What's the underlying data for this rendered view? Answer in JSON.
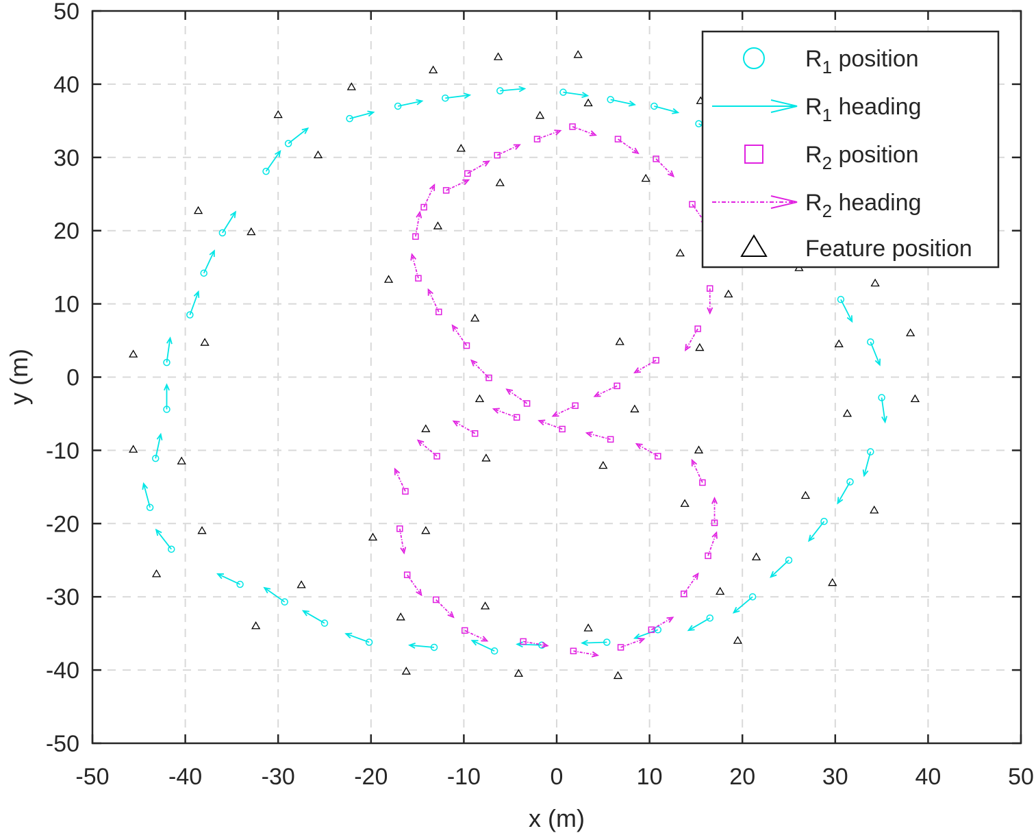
{
  "chart_data": {
    "type": "scatter",
    "xlabel": "x (m)",
    "ylabel": "y (m)",
    "xlim": [
      -50,
      50
    ],
    "ylim": [
      -50,
      50
    ],
    "xticks": [
      "-50",
      "-40",
      "-30",
      "-20",
      "-10",
      "0",
      "10",
      "20",
      "30",
      "40",
      "50"
    ],
    "yticks": [
      "-50",
      "-40",
      "-30",
      "-20",
      "-10",
      "0",
      "10",
      "20",
      "30",
      "40",
      "50"
    ],
    "grid": true,
    "legend_placement": "top-right",
    "legend": [
      {
        "base": "R",
        "sub": "1",
        "text": " position",
        "marker": "circle",
        "color": "#00E5E5"
      },
      {
        "base": "R",
        "sub": "1",
        "text": " heading",
        "marker": "arrow",
        "color": "#00E5E5"
      },
      {
        "base": "R",
        "sub": "2",
        "text": " position",
        "marker": "square",
        "color": "#E020E0"
      },
      {
        "base": "R",
        "sub": "2",
        "text": " heading",
        "marker": "dasharrow",
        "color": "#E020E0"
      },
      {
        "base": "",
        "sub": "",
        "text": "Feature position",
        "marker": "triangle",
        "color": "#000000"
      }
    ],
    "series": [
      {
        "name": "R1",
        "color": "#00E5E5",
        "marker": "circle",
        "points": [
          {
            "x": 0.7,
            "y": 38.9,
            "heading": -8
          },
          {
            "x": 5.8,
            "y": 37.9,
            "heading": -12
          },
          {
            "x": 10.5,
            "y": 37.0,
            "heading": -15
          },
          {
            "x": 15.3,
            "y": 34.6,
            "heading": -28
          },
          {
            "x": 30.6,
            "y": 10.6,
            "heading": -63
          },
          {
            "x": 33.8,
            "y": 4.8,
            "heading": -68
          },
          {
            "x": 35.0,
            "y": -2.8,
            "heading": -82
          },
          {
            "x": 33.8,
            "y": -10.2,
            "heading": -105
          },
          {
            "x": 31.6,
            "y": -14.3,
            "heading": -120
          },
          {
            "x": 28.8,
            "y": -19.7,
            "heading": -128
          },
          {
            "x": 25.0,
            "y": -25.0,
            "heading": -137
          },
          {
            "x": 21.1,
            "y": -30.0,
            "heading": -140
          },
          {
            "x": 16.5,
            "y": -32.9,
            "heading": -150
          },
          {
            "x": 10.9,
            "y": -34.5,
            "heading": -160
          },
          {
            "x": 5.4,
            "y": -36.2,
            "heading": -178
          },
          {
            "x": -1.6,
            "y": -36.6,
            "heading": 178
          },
          {
            "x": -6.7,
            "y": -37.4,
            "heading": 155
          },
          {
            "x": -13.2,
            "y": -36.9,
            "heading": 175
          },
          {
            "x": -20.2,
            "y": -36.2,
            "heading": 160
          },
          {
            "x": -25.0,
            "y": -33.6,
            "heading": 150
          },
          {
            "x": -29.3,
            "y": -30.7,
            "heading": 145
          },
          {
            "x": -34.1,
            "y": -28.3,
            "heading": 155
          },
          {
            "x": -41.5,
            "y": -23.5,
            "heading": 128
          },
          {
            "x": -43.8,
            "y": -17.8,
            "heading": 105
          },
          {
            "x": -43.2,
            "y": -11.1,
            "heading": 78
          },
          {
            "x": -42.0,
            "y": -4.4,
            "heading": 90
          },
          {
            "x": -42.0,
            "y": 2.0,
            "heading": 82
          },
          {
            "x": -39.5,
            "y": 8.5,
            "heading": 70
          },
          {
            "x": -38.0,
            "y": 14.2,
            "heading": 65
          },
          {
            "x": -36.0,
            "y": 19.7,
            "heading": 58
          },
          {
            "x": -31.3,
            "y": 28.1,
            "heading": 55
          },
          {
            "x": -28.9,
            "y": 31.9,
            "heading": 38
          },
          {
            "x": -22.3,
            "y": 35.3,
            "heading": 15
          },
          {
            "x": -17.1,
            "y": 37.0,
            "heading": 12
          },
          {
            "x": -12.0,
            "y": 38.1,
            "heading": 7
          },
          {
            "x": -6.1,
            "y": 39.1,
            "heading": 5
          }
        ]
      },
      {
        "name": "R2",
        "color": "#E020E0",
        "marker": "square",
        "points": [
          {
            "x": 1.7,
            "y": 34.2,
            "heading": -20
          },
          {
            "x": 6.6,
            "y": 32.5,
            "heading": -35
          },
          {
            "x": 10.7,
            "y": 29.8,
            "heading": -45
          },
          {
            "x": 14.6,
            "y": 23.6,
            "heading": -55
          },
          {
            "x": 16.5,
            "y": 12.1,
            "heading": -90
          },
          {
            "x": 15.2,
            "y": 6.6,
            "heading": -120
          },
          {
            "x": 10.7,
            "y": 2.3,
            "heading": -150
          },
          {
            "x": 6.5,
            "y": -1.2,
            "heading": -155
          },
          {
            "x": 2.0,
            "y": -3.9,
            "heading": -155
          },
          {
            "x": -3.2,
            "y": -3.6,
            "heading": 145
          },
          {
            "x": -7.3,
            "y": -0.1,
            "heading": 135
          },
          {
            "x": -9.7,
            "y": 4.3,
            "heading": 125
          },
          {
            "x": -12.7,
            "y": 8.9,
            "heading": 115
          },
          {
            "x": -14.9,
            "y": 13.5,
            "heading": 105
          },
          {
            "x": -15.2,
            "y": 19.2,
            "heading": 80
          },
          {
            "x": -14.3,
            "y": 23.2,
            "heading": 65
          },
          {
            "x": -11.9,
            "y": 25.5,
            "heading": 25
          },
          {
            "x": -9.6,
            "y": 27.8,
            "heading": 30
          },
          {
            "x": -6.4,
            "y": 30.3,
            "heading": 25
          },
          {
            "x": -2.1,
            "y": 32.5,
            "heading": 20
          },
          {
            "x": -4.3,
            "y": -5.5,
            "heading": 160
          },
          {
            "x": -8.8,
            "y": -7.7,
            "heading": 150
          },
          {
            "x": -12.9,
            "y": -10.8,
            "heading": 140
          },
          {
            "x": -16.3,
            "y": -15.6,
            "heading": 115
          },
          {
            "x": -16.9,
            "y": -20.7,
            "heading": -80
          },
          {
            "x": -16.1,
            "y": -27.0,
            "heading": -55
          },
          {
            "x": -13.0,
            "y": -30.4,
            "heading": -45
          },
          {
            "x": -9.9,
            "y": -34.6,
            "heading": -25
          },
          {
            "x": -3.6,
            "y": -36.1,
            "heading": -10
          },
          {
            "x": 1.8,
            "y": -37.4,
            "heading": -10
          },
          {
            "x": 6.9,
            "y": -36.9,
            "heading": 20
          },
          {
            "x": 10.2,
            "y": -34.5,
            "heading": 30
          },
          {
            "x": 13.7,
            "y": -29.6,
            "heading": 55
          },
          {
            "x": 16.3,
            "y": -24.4,
            "heading": 70
          },
          {
            "x": 17.0,
            "y": -19.9,
            "heading": 90
          },
          {
            "x": 15.7,
            "y": -14.4,
            "heading": 115
          },
          {
            "x": 10.9,
            "y": -10.8,
            "heading": 150
          },
          {
            "x": 5.8,
            "y": -8.5,
            "heading": 165
          },
          {
            "x": 0.6,
            "y": -7.1,
            "heading": 160
          }
        ]
      },
      {
        "name": "Features",
        "color": "#000000",
        "marker": "triangle",
        "points": [
          {
            "x": -13.3,
            "y": 41.9
          },
          {
            "x": -6.3,
            "y": 43.7
          },
          {
            "x": 2.3,
            "y": 44.0
          },
          {
            "x": -22.1,
            "y": 39.6
          },
          {
            "x": 3.4,
            "y": 37.4
          },
          {
            "x": 15.5,
            "y": 37.7
          },
          {
            "x": -30.0,
            "y": 35.8
          },
          {
            "x": -1.8,
            "y": 35.7
          },
          {
            "x": -25.7,
            "y": 30.3
          },
          {
            "x": -10.3,
            "y": 31.2
          },
          {
            "x": 9.6,
            "y": 27.1
          },
          {
            "x": -6.1,
            "y": 26.5
          },
          {
            "x": -38.6,
            "y": 22.7
          },
          {
            "x": -32.9,
            "y": 19.8
          },
          {
            "x": -12.8,
            "y": 20.6
          },
          {
            "x": 13.3,
            "y": 16.9
          },
          {
            "x": 26.1,
            "y": 14.9
          },
          {
            "x": -18.1,
            "y": 13.3
          },
          {
            "x": 34.3,
            "y": 12.8
          },
          {
            "x": 18.5,
            "y": 11.3
          },
          {
            "x": -8.8,
            "y": 8.0
          },
          {
            "x": 38.1,
            "y": 6.0
          },
          {
            "x": -45.6,
            "y": 3.1
          },
          {
            "x": -37.9,
            "y": 4.7
          },
          {
            "x": 6.8,
            "y": 4.8
          },
          {
            "x": 15.4,
            "y": 4.0
          },
          {
            "x": 30.4,
            "y": 4.5
          },
          {
            "x": -8.3,
            "y": -3.0
          },
          {
            "x": 38.6,
            "y": -3.0
          },
          {
            "x": 8.4,
            "y": -4.4
          },
          {
            "x": 31.3,
            "y": -5.0
          },
          {
            "x": -14.1,
            "y": -7.1
          },
          {
            "x": -45.6,
            "y": -9.9
          },
          {
            "x": -40.4,
            "y": -11.5
          },
          {
            "x": -7.6,
            "y": -11.1
          },
          {
            "x": 15.3,
            "y": -10.0
          },
          {
            "x": 5.0,
            "y": -12.1
          },
          {
            "x": 26.8,
            "y": -16.2
          },
          {
            "x": 13.8,
            "y": -17.3
          },
          {
            "x": 34.2,
            "y": -18.2
          },
          {
            "x": -38.2,
            "y": -21.0
          },
          {
            "x": -14.1,
            "y": -21.0
          },
          {
            "x": -19.8,
            "y": -21.9
          },
          {
            "x": 21.5,
            "y": -24.6
          },
          {
            "x": -43.1,
            "y": -26.9
          },
          {
            "x": -27.5,
            "y": -28.4
          },
          {
            "x": 29.7,
            "y": -28.1
          },
          {
            "x": 17.6,
            "y": -29.3
          },
          {
            "x": -7.7,
            "y": -31.3
          },
          {
            "x": -16.8,
            "y": -32.8
          },
          {
            "x": -32.4,
            "y": -34.0
          },
          {
            "x": 3.4,
            "y": -34.3
          },
          {
            "x": 19.5,
            "y": -36.0
          },
          {
            "x": -16.2,
            "y": -40.2
          },
          {
            "x": -4.1,
            "y": -40.5
          },
          {
            "x": 6.6,
            "y": -40.8
          }
        ]
      }
    ]
  }
}
